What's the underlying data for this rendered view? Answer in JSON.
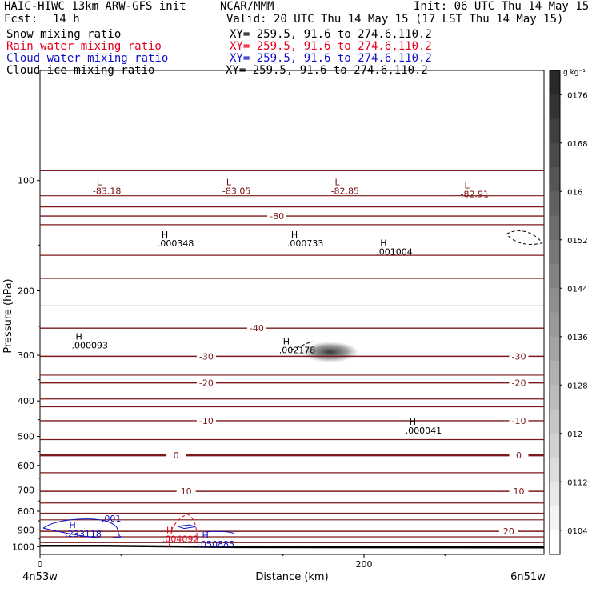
{
  "header": {
    "title": "HAIC-HIWC 13km ARW-GFS init",
    "org": "NCAR/MMM",
    "init": "Init: 06 UTC Thu 14 May 15",
    "fcst_label": "Fcst:",
    "fcst_value": "14 h",
    "valid": "Valid: 20 UTC Thu 14 May 15 (17 LST Thu 14 May 15)",
    "fields": [
      {
        "name": "Snow mixing ratio",
        "xy": "XY= 259.5, 91.6 to 274.6,110.2",
        "color": "#000000"
      },
      {
        "name": "Rain water mixing ratio",
        "xy": "XY= 259.5, 91.6 to 274.6,110.2",
        "color": "#e8001c"
      },
      {
        "name": "Cloud water mixing ratio",
        "xy": "XY= 259.5, 91.6 to 274.6,110.2",
        "color": "#1010c8"
      },
      {
        "name": "Cloud ice mixing ratio",
        "xy": "XY= 259.5, 91.6 to 274.6,110.2",
        "color": "#000000"
      }
    ]
  },
  "chart_data": {
    "type": "cross-section contour",
    "xlabel": "Distance (km)",
    "ylabel": "Pressure (hPa)",
    "x_ticks": [
      "0",
      "200"
    ],
    "x_range_km": [
      0,
      300
    ],
    "y_ticks": [
      "100",
      "200",
      "300",
      "400",
      "500",
      "600",
      "700",
      "800",
      "900",
      "1000"
    ],
    "y_range_hpa": [
      50,
      1050
    ],
    "y_scale": "log",
    "left_endpoint": "4n53w",
    "right_endpoint": "6n51w",
    "temperature_contours": [
      {
        "value": -80,
        "label": "-80",
        "p": 125
      },
      {
        "value": -40,
        "label": "-40",
        "p": 253
      },
      {
        "value": -30,
        "label": "-30",
        "p": 302
      },
      {
        "value": -20,
        "label": "-20",
        "p": 357
      },
      {
        "value": -10,
        "label": "-10",
        "p": 453
      },
      {
        "value": 0,
        "label": "0",
        "p": 563
      },
      {
        "value": 10,
        "label": "10",
        "p": 706
      },
      {
        "value": 20,
        "label": "20",
        "p": 908
      }
    ],
    "extrema": [
      {
        "type": "L",
        "value": "-83.18",
        "x_km": 35,
        "p": 103,
        "color": "#7a0a0a"
      },
      {
        "type": "L",
        "value": "-83.05",
        "x_km": 115,
        "p": 103,
        "color": "#7a0a0a"
      },
      {
        "type": "L",
        "value": "-82.85",
        "x_km": 182,
        "p": 103,
        "color": "#7a0a0a"
      },
      {
        "type": "L",
        "value": "-82.91",
        "x_km": 262,
        "p": 105,
        "color": "#7a0a0a"
      },
      {
        "type": "H",
        "value": ".000348",
        "x_km": 75,
        "p": 143,
        "color": "#000000"
      },
      {
        "type": "H",
        "value": ".000733",
        "x_km": 155,
        "p": 143,
        "color": "#000000"
      },
      {
        "type": "H",
        "value": ".001004",
        "x_km": 210,
        "p": 151,
        "color": "#000000"
      },
      {
        "type": "H",
        "value": ".000093",
        "x_km": 22,
        "p": 272,
        "color": "#000000"
      },
      {
        "type": "H",
        "value": ".002178",
        "x_km": 150,
        "p": 280,
        "color": "#000000"
      },
      {
        "type": "H",
        "value": ".000041",
        "x_km": 228,
        "p": 465,
        "color": "#000000"
      },
      {
        "type": "H",
        "value": ".233118",
        "x_km": 18,
        "p": 890,
        "color": "#1010c8"
      },
      {
        "type": "H",
        "value": ".004092",
        "x_km": 78,
        "p": 920,
        "color": "#e8001c"
      },
      {
        "type": "H",
        "value": ".050885",
        "x_km": 100,
        "p": 950,
        "color": "#1010c8"
      },
      {
        "type": "label",
        "value": ".001",
        "x_km": 38,
        "p": 855,
        "color": "#1010c8"
      }
    ],
    "colorbar": {
      "unit": "g kg⁻¹",
      "labels": [
        ".0176",
        ".0168",
        ".016",
        ".0152",
        ".0144",
        ".0136",
        ".0128",
        ".012",
        ".0112",
        ".0104"
      ],
      "range": [
        0.01,
        0.018
      ]
    }
  }
}
